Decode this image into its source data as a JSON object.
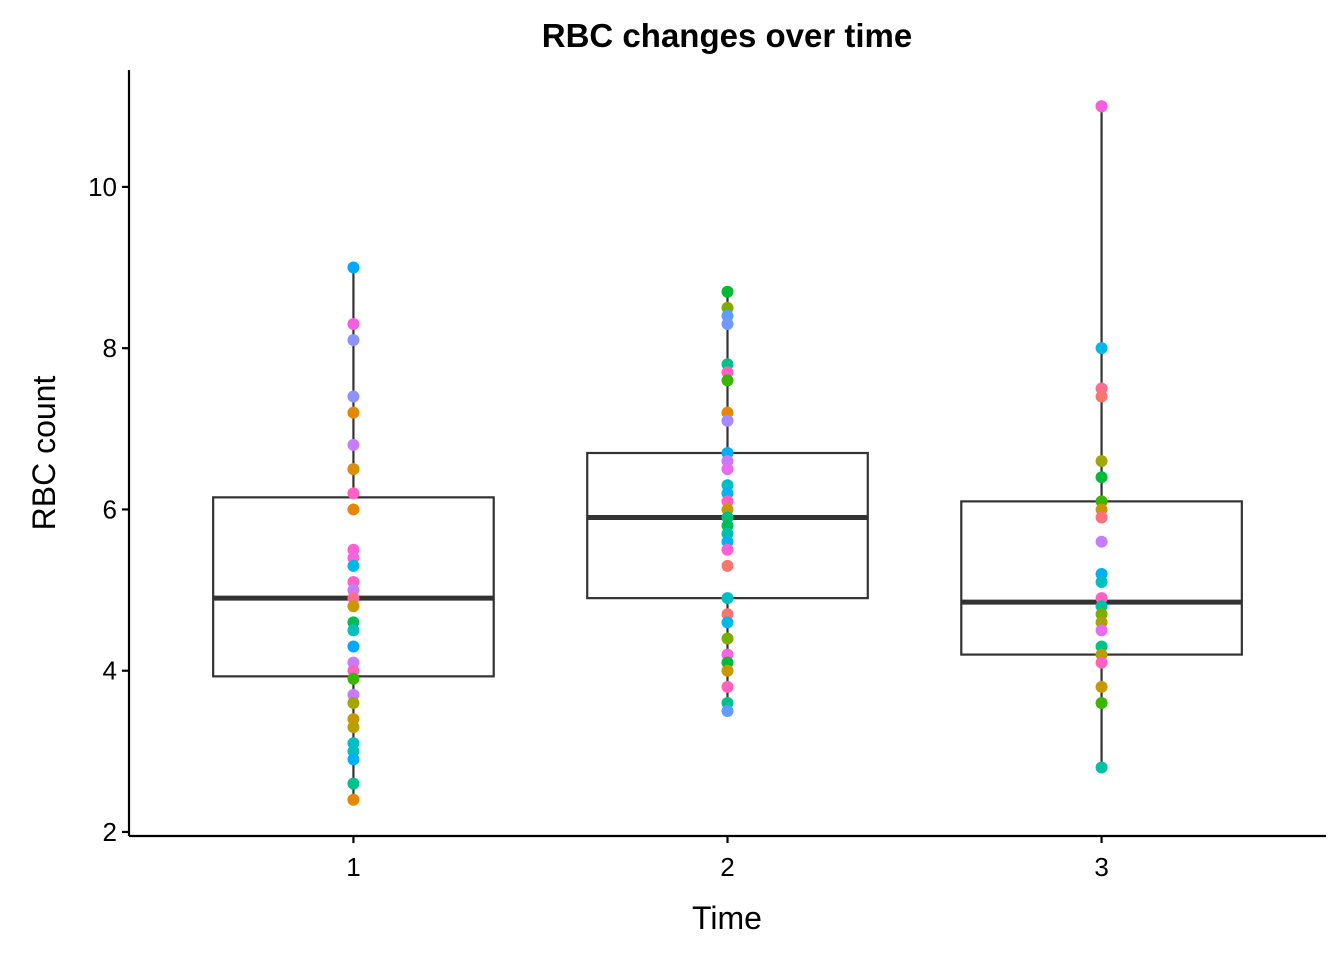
{
  "chart_data": {
    "type": "box",
    "title": "RBC changes over time",
    "xlabel": "Time",
    "ylabel": "RBC count",
    "categories": [
      "1",
      "2",
      "3"
    ],
    "y_ticks": [
      2,
      4,
      6,
      8,
      10
    ],
    "ylim": [
      1.95,
      11.45
    ],
    "grid": false,
    "legend": "none",
    "boxes": [
      {
        "category": "1",
        "min": 2.4,
        "q1": 3.93,
        "median": 4.9,
        "q3": 6.15,
        "max": 9.0
      },
      {
        "category": "2",
        "min": 3.5,
        "q1": 4.9,
        "median": 5.9,
        "q3": 6.7,
        "max": 8.7
      },
      {
        "category": "3",
        "min": 2.8,
        "q1": 4.2,
        "median": 4.85,
        "q3": 6.1,
        "max": 11.0
      }
    ],
    "points": [
      {
        "category": "1",
        "values": [
          9.0,
          8.3,
          8.1,
          7.4,
          7.2,
          6.8,
          6.5,
          6.5,
          6.2,
          6.0,
          5.5,
          5.4,
          5.3,
          5.1,
          5.0,
          4.9,
          4.8,
          4.6,
          4.5,
          4.3,
          4.1,
          4.0,
          3.9,
          3.7,
          3.6,
          3.4,
          3.3,
          3.1,
          3.0,
          2.9,
          2.6,
          2.4
        ],
        "colors": [
          "#00a9ff",
          "#f35edc",
          "#8b93ff",
          "#8b93ff",
          "#e58700",
          "#c77cff",
          "#f8766d",
          "#d89000",
          "#ff61c3",
          "#e58700",
          "#fb61d7",
          "#f763e0",
          "#00b8e7",
          "#ff61c9",
          "#c77cff",
          "#ff6c91",
          "#c99800",
          "#00bc56",
          "#00c0b8",
          "#00a9ff",
          "#c77cff",
          "#ff62bc",
          "#39b600",
          "#c77cff",
          "#a3a500",
          "#c99800",
          "#b79f00",
          "#00bfc4",
          "#00bfc4",
          "#00b0f6",
          "#00c08b",
          "#e58700"
        ]
      },
      {
        "category": "2",
        "values": [
          8.7,
          8.5,
          8.4,
          8.3,
          7.8,
          7.7,
          7.6,
          7.2,
          7.1,
          6.7,
          6.6,
          6.5,
          6.3,
          6.2,
          6.1,
          6.0,
          5.9,
          5.8,
          5.7,
          5.6,
          5.5,
          5.3,
          4.9,
          4.7,
          4.6,
          4.4,
          4.2,
          4.1,
          4.0,
          3.8,
          3.6,
          3.5
        ],
        "colors": [
          "#00ba38",
          "#7cae00",
          "#619cff",
          "#6f9bff",
          "#00c08b",
          "#ff61c9",
          "#39b600",
          "#e58700",
          "#a58aff",
          "#00b0f6",
          "#c77cff",
          "#e76bf3",
          "#00bfc4",
          "#00b4f0",
          "#ff61c3",
          "#c99800",
          "#00bf7d",
          "#00bc56",
          "#00c1a3",
          "#00b4f0",
          "#fb61d7",
          "#f8766d",
          "#00bfc4",
          "#f8766d",
          "#00b8e7",
          "#7cae00",
          "#f763e0",
          "#00ba38",
          "#c99800",
          "#ff62bc",
          "#00c08b",
          "#619cff"
        ]
      },
      {
        "category": "3",
        "values": [
          11.0,
          11.0,
          8.0,
          7.5,
          7.4,
          6.6,
          6.4,
          6.1,
          6.0,
          5.9,
          5.6,
          5.2,
          5.1,
          4.9,
          4.8,
          4.7,
          4.6,
          4.5,
          4.3,
          4.2,
          4.1,
          3.8,
          3.6,
          2.8
        ],
        "colors": [
          "#ff61c9",
          "#f35edc",
          "#00b8e7",
          "#ff6c91",
          "#f8766d",
          "#a3a500",
          "#00ba38",
          "#39b600",
          "#c99800",
          "#fc717f",
          "#c77cff",
          "#00b0f6",
          "#00bfc4",
          "#ff61c3",
          "#00c1a3",
          "#7cae00",
          "#a3a500",
          "#e76bf3",
          "#00c08b",
          "#b79f00",
          "#ff62bc",
          "#c99800",
          "#39b600",
          "#00c1a3"
        ]
      }
    ]
  }
}
